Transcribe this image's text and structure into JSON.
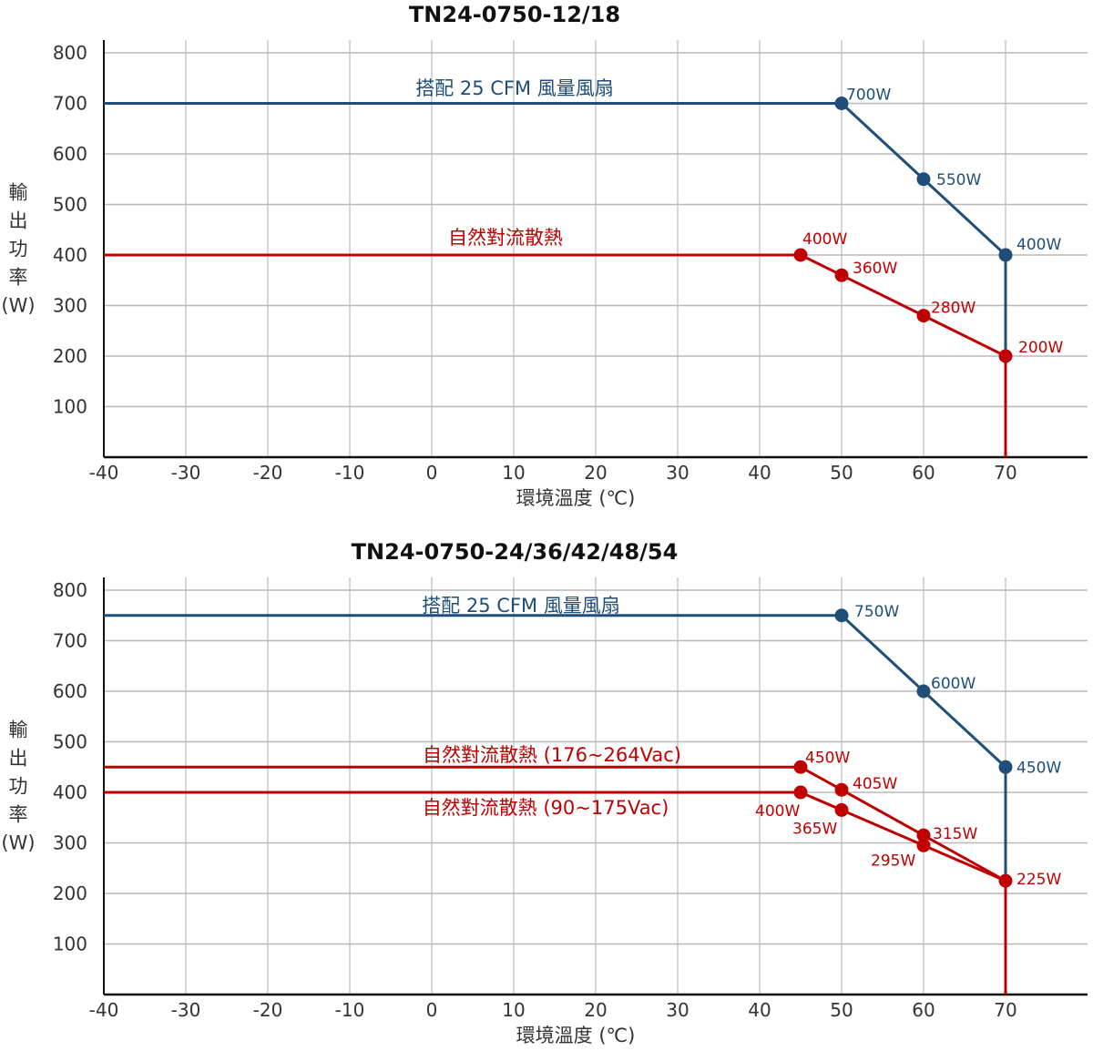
{
  "colors": {
    "blue": "#1f4e79",
    "red": "#c00000",
    "grid": "#c8c8c8",
    "axis": "#111111"
  },
  "chart_data": [
    {
      "type": "line",
      "title": "TN24-0750-12/18",
      "xlabel": "環境溫度 (℃)",
      "ylabel": [
        "輸",
        "出",
        "功",
        "率",
        "(W)"
      ],
      "xlim": [
        -40,
        80
      ],
      "ylim": [
        0,
        800
      ],
      "xticks": [
        "-40",
        "-30",
        "-20",
        "-10",
        "0",
        "10",
        "20",
        "30",
        "40",
        "50",
        "60",
        "70"
      ],
      "yticks": [
        "100",
        "200",
        "300",
        "400",
        "500",
        "600",
        "700",
        "800"
      ],
      "grid": true,
      "series": [
        {
          "name": "搭配 25 CFM 風量風扇",
          "color": "blue",
          "x": [
            -40,
            50,
            60,
            70,
            70
          ],
          "y": [
            700,
            700,
            550,
            400,
            0
          ],
          "points": [
            {
              "x": 50,
              "y": 700,
              "label": "700W"
            },
            {
              "x": 60,
              "y": 550,
              "label": "550W"
            },
            {
              "x": 70,
              "y": 400,
              "label": "400W"
            }
          ]
        },
        {
          "name": "自然對流散熱",
          "color": "red",
          "x": [
            -40,
            45,
            50,
            60,
            70,
            70
          ],
          "y": [
            400,
            400,
            360,
            280,
            200,
            0
          ],
          "points": [
            {
              "x": 45,
              "y": 400,
              "label": "400W"
            },
            {
              "x": 50,
              "y": 360,
              "label": "360W"
            },
            {
              "x": 60,
              "y": 280,
              "label": "280W"
            },
            {
              "x": 70,
              "y": 200,
              "label": "200W"
            }
          ]
        }
      ]
    },
    {
      "type": "line",
      "title": "TN24-0750-24/36/42/48/54",
      "xlabel": "環境溫度 (℃)",
      "ylabel": [
        "輸",
        "出",
        "功",
        "率",
        "(W)"
      ],
      "xlim": [
        -40,
        80
      ],
      "ylim": [
        0,
        800
      ],
      "xticks": [
        "-40",
        "-30",
        "-20",
        "-10",
        "0",
        "10",
        "20",
        "30",
        "40",
        "50",
        "60",
        "70"
      ],
      "yticks": [
        "100",
        "200",
        "300",
        "400",
        "500",
        "600",
        "700",
        "800"
      ],
      "grid": true,
      "series": [
        {
          "name": "搭配 25 CFM 風量風扇",
          "color": "blue",
          "x": [
            -40,
            50,
            60,
            70,
            70
          ],
          "y": [
            750,
            750,
            600,
            450,
            0
          ],
          "points": [
            {
              "x": 50,
              "y": 750,
              "label": "750W"
            },
            {
              "x": 60,
              "y": 600,
              "label": "600W"
            },
            {
              "x": 70,
              "y": 450,
              "label": "450W"
            }
          ]
        },
        {
          "name": "自然對流散熱 (176~264Vac)",
          "color": "red",
          "x": [
            -40,
            45,
            50,
            60,
            70,
            70
          ],
          "y": [
            450,
            450,
            405,
            315,
            225,
            0
          ],
          "points": [
            {
              "x": 45,
              "y": 450,
              "label": "450W"
            },
            {
              "x": 50,
              "y": 405,
              "label": "405W"
            },
            {
              "x": 60,
              "y": 315,
              "label": "315W"
            },
            {
              "x": 70,
              "y": 225,
              "label": "225W"
            }
          ]
        },
        {
          "name": "自然對流散熱 (90~175Vac)",
          "color": "red",
          "x": [
            -40,
            45,
            50,
            60,
            70,
            70
          ],
          "y": [
            400,
            400,
            365,
            295,
            225,
            0
          ],
          "points": [
            {
              "x": 45,
              "y": 400,
              "label": "400W"
            },
            {
              "x": 50,
              "y": 365,
              "label": "365W"
            },
            {
              "x": 60,
              "y": 295,
              "label": "295W"
            }
          ]
        }
      ]
    }
  ]
}
